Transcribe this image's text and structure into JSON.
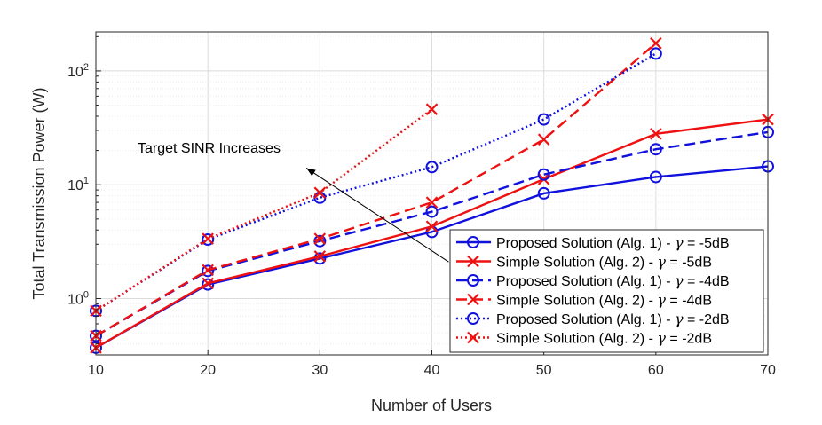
{
  "chart_data": {
    "type": "line",
    "title": "",
    "xlabel": "Number of Users",
    "ylabel": "Total Transmission Power (W)",
    "xlim": [
      10,
      70
    ],
    "ylim": [
      0.32,
      220
    ],
    "yscale": "log",
    "grid": true,
    "x_ticks": [
      10,
      20,
      30,
      40,
      50,
      60,
      70
    ],
    "x_tick_labels": [
      "10",
      "20",
      "30",
      "40",
      "50",
      "60",
      "70"
    ],
    "y_ticks": [
      1,
      10,
      100
    ],
    "y_tick_labels": [
      {
        "base": "10",
        "exp": "0"
      },
      {
        "base": "10",
        "exp": "1"
      },
      {
        "base": "10",
        "exp": "2"
      }
    ],
    "legend_position": "bottom-right",
    "annotation": {
      "text": "Target SINR Increases",
      "arrow_from": [
        41.5,
        2.1
      ],
      "arrow_to": [
        28.8,
        14.0
      ]
    },
    "series": [
      {
        "name": "Proposed Solution (Alg. 1) - γ = -5dB",
        "label_head": "Proposed Solution (Alg. 1) - ",
        "gamma_symbol": "γ",
        "label_tail": " = -5dB",
        "color": "#1111dd",
        "dash": "solid",
        "marker": "o",
        "x": [
          10,
          20,
          30,
          40,
          50,
          60,
          70
        ],
        "values": [
          0.37,
          1.33,
          2.25,
          3.85,
          8.4,
          11.7,
          14.5
        ]
      },
      {
        "name": "Simple Solution (Alg. 2) - γ = -5dB",
        "label_head": "Simple Solution (Alg. 2) - ",
        "gamma_symbol": "γ",
        "label_tail": " = -5dB",
        "color": "#ee1111",
        "dash": "solid",
        "marker": "x",
        "x": [
          10,
          20,
          30,
          40,
          50,
          60,
          70
        ],
        "values": [
          0.37,
          1.36,
          2.35,
          4.3,
          11.2,
          28.0,
          37.5
        ]
      },
      {
        "name": "Proposed Solution (Alg. 1) - γ = -4dB",
        "label_head": "Proposed Solution (Alg. 1) - ",
        "gamma_symbol": "γ",
        "label_tail": " = -4dB",
        "color": "#1111dd",
        "dash": "dashed",
        "marker": "o",
        "x": [
          10,
          20,
          30,
          40,
          50,
          60,
          70
        ],
        "values": [
          0.47,
          1.75,
          3.2,
          5.8,
          12.3,
          20.5,
          29.0
        ]
      },
      {
        "name": "Simple Solution (Alg. 2) - γ = -4dB",
        "label_head": "Simple Solution (Alg. 2) - ",
        "gamma_symbol": "γ",
        "label_tail": " = -4dB",
        "color": "#ee1111",
        "dash": "dashed",
        "marker": "x",
        "x": [
          10,
          20,
          30,
          40,
          50,
          60
        ],
        "values": [
          0.47,
          1.78,
          3.35,
          7.0,
          25.0,
          175.0
        ]
      },
      {
        "name": "Proposed Solution (Alg. 1) - γ = -2dB",
        "label_head": "Proposed Solution (Alg. 1) - ",
        "gamma_symbol": "γ",
        "label_tail": " = -2dB",
        "color": "#1111dd",
        "dash": "dotted",
        "marker": "o",
        "x": [
          10,
          20,
          30,
          40,
          50,
          60
        ],
        "values": [
          0.78,
          3.3,
          7.7,
          14.3,
          37.5,
          142.0
        ]
      },
      {
        "name": "Simple Solution (Alg. 2) - γ = -2dB",
        "label_head": "Simple Solution (Alg. 2) - ",
        "gamma_symbol": "γ",
        "label_tail": " = -2dB",
        "color": "#ee1111",
        "dash": "dotted",
        "marker": "x",
        "x": [
          10,
          20,
          30,
          40
        ],
        "values": [
          0.78,
          3.35,
          8.5,
          46.0
        ]
      }
    ]
  }
}
